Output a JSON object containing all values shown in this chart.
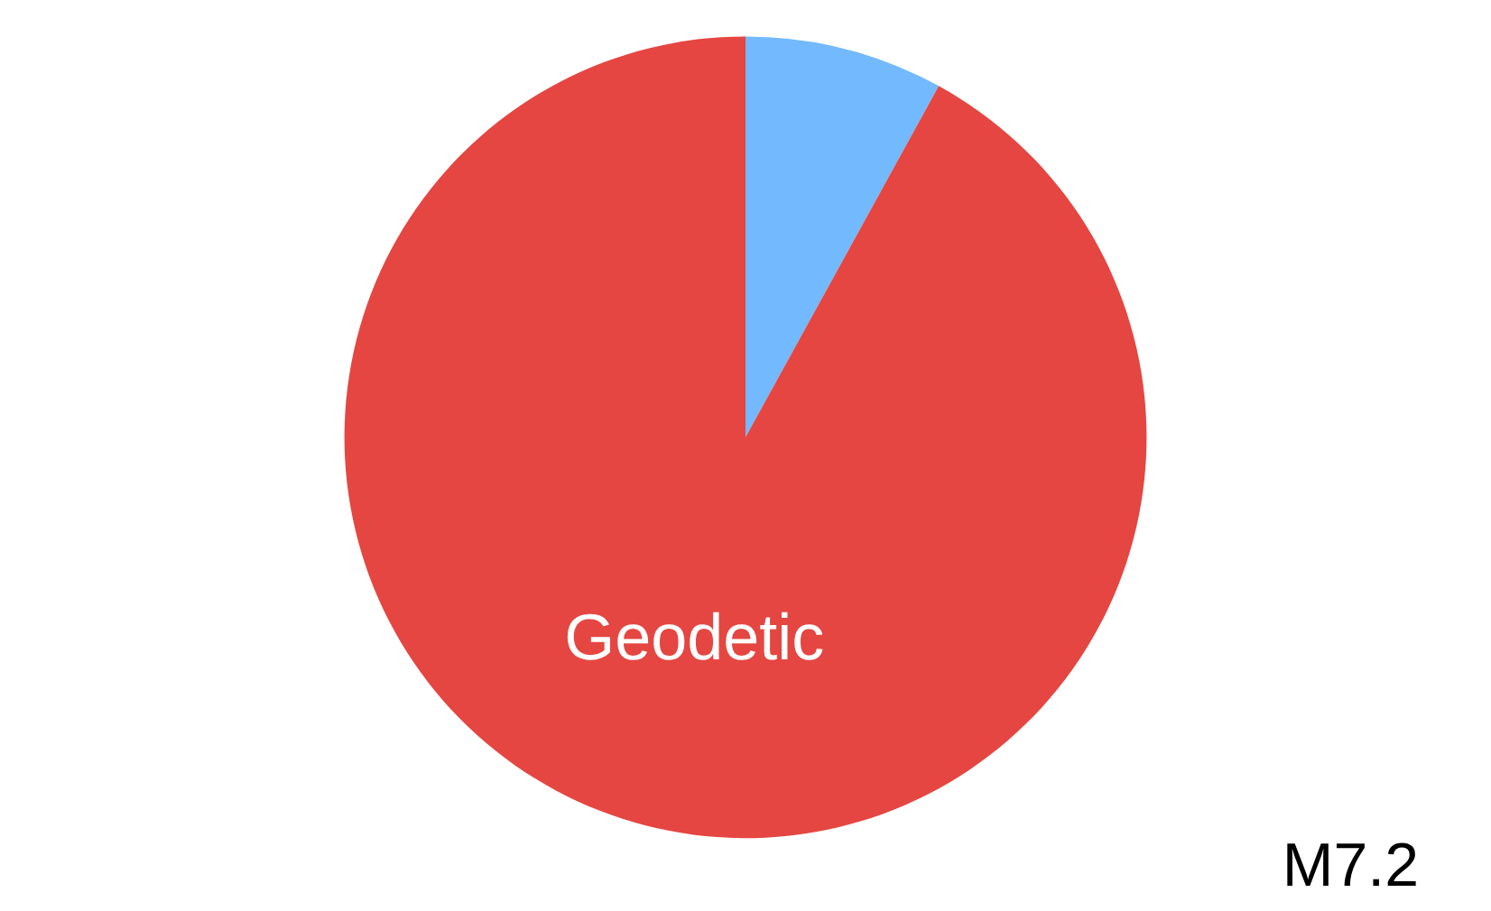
{
  "chart_data": {
    "type": "pie",
    "categories": [
      null,
      "Geodetic"
    ],
    "values": [
      8,
      92
    ],
    "colors": [
      "#73b9fd",
      "#e54641"
    ],
    "annotations": [
      "M7.2"
    ]
  }
}
